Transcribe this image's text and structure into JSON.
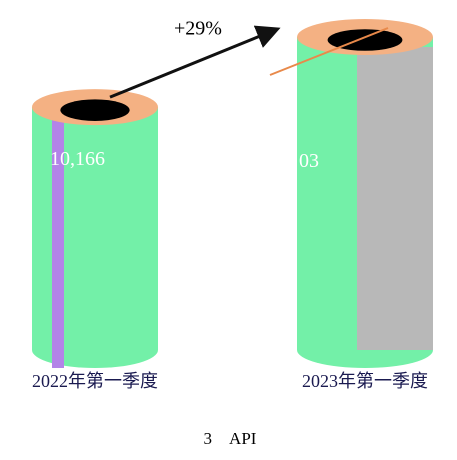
{
  "chart_data": {
    "type": "cylinder-bar",
    "categories": [
      "2022年第一季度",
      "2023年第一季度"
    ],
    "values": [
      10166,
      13103
    ],
    "value_labels": [
      "10,166",
      "13,103"
    ],
    "color": "#73f0a8",
    "top_color": "#f4b183",
    "annotation": "+29%",
    "caption": "3　API"
  }
}
